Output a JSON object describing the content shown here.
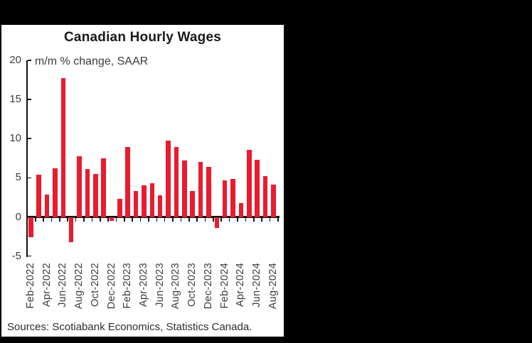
{
  "panel": {
    "title": "Canadian Hourly Wages",
    "source_note": "Sources: Scotiabank Economics, Statistics Canada."
  },
  "chart_data": {
    "type": "bar",
    "title": "Canadian Hourly Wages",
    "subtitle": "m/m % change, SAAR",
    "categories": [
      "Feb-2022",
      "Mar-2022",
      "Apr-2022",
      "May-2022",
      "Jun-2022",
      "Jul-2022",
      "Aug-2022",
      "Sep-2022",
      "Oct-2022",
      "Nov-2022",
      "Dec-2022",
      "Jan-2023",
      "Feb-2023",
      "Mar-2023",
      "Apr-2023",
      "May-2023",
      "Jun-2023",
      "Jul-2023",
      "Aug-2023",
      "Sep-2023",
      "Oct-2023",
      "Nov-2023",
      "Dec-2023",
      "Jan-2024",
      "Feb-2024",
      "Mar-2024",
      "Apr-2024",
      "May-2024",
      "Jun-2024",
      "Jul-2024",
      "Aug-2024"
    ],
    "values": [
      -2.5,
      5.4,
      2.9,
      6.2,
      17.7,
      -3.1,
      7.8,
      6.1,
      5.5,
      7.5,
      -0.4,
      2.3,
      8.9,
      3.3,
      4.0,
      4.3,
      2.8,
      9.8,
      8.9,
      7.2,
      3.3,
      7.0,
      6.4,
      -1.3,
      4.7,
      4.9,
      1.8,
      8.6,
      7.3,
      5.2,
      4.1
    ],
    "xlabel": "",
    "ylabel": "",
    "ylim": [
      -5,
      20
    ],
    "yticks": [
      20,
      15,
      10,
      5,
      0,
      -5
    ],
    "xtick_label_every": 2,
    "bar_color": "#ea1b2d",
    "grid": false,
    "legend": "none",
    "source_note": "Sources: Scotiabank Economics, Statistics Canada."
  }
}
